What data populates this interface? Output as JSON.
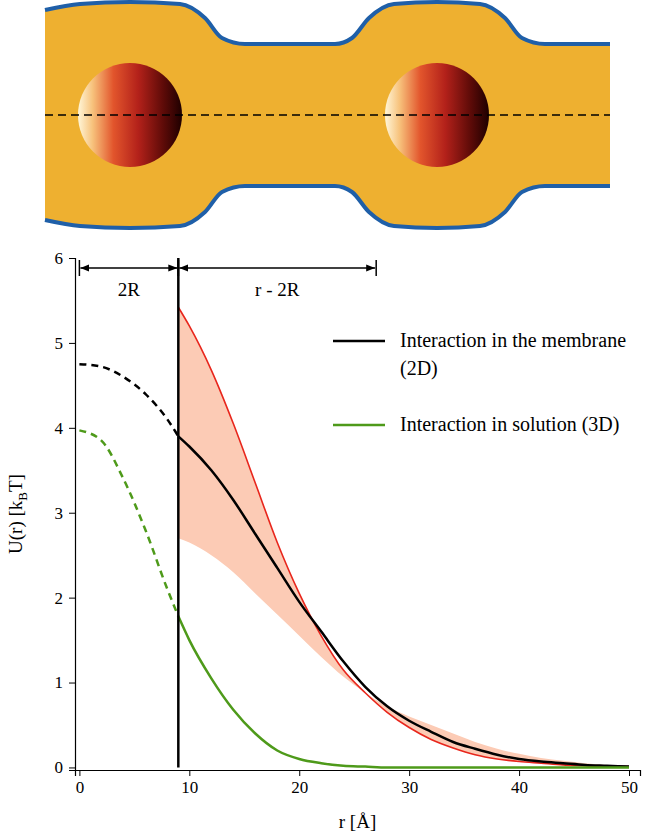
{
  "chart_data": {
    "type": "line",
    "x_label": "r [Å]",
    "y_label": [
      {
        "text": "U(r) [k"
      },
      {
        "text": "B",
        "subscript": true
      },
      {
        "text": "T]"
      }
    ],
    "x": [
      0,
      2,
      4,
      6,
      8,
      9,
      10,
      12,
      14,
      16,
      18,
      20,
      22,
      24,
      26,
      28,
      30,
      32,
      34,
      36,
      38,
      40,
      42,
      44,
      46,
      48,
      50
    ],
    "xlim": [
      -0.4,
      51
    ],
    "xticks": [
      0,
      10,
      20,
      30,
      40,
      50
    ],
    "ylim": [
      -0.03,
      6
    ],
    "yticks": [
      0,
      1,
      2,
      3,
      4,
      5,
      6
    ],
    "legend": "right",
    "vline": {
      "x": 9
    },
    "spans": [
      {
        "label": "2R",
        "from": 0,
        "to": 9
      },
      {
        "label": "r - 2R",
        "from": 9,
        "to": 27
      }
    ],
    "series": [
      {
        "name": "Interaction in the membrane (2D)",
        "type": "line",
        "color": "#000000",
        "values": [
          4.75,
          4.72,
          4.6,
          4.4,
          4.1,
          3.9,
          3.78,
          3.5,
          3.15,
          2.75,
          2.35,
          1.95,
          1.6,
          1.25,
          0.95,
          0.72,
          0.55,
          0.42,
          0.3,
          0.22,
          0.15,
          0.1,
          0.07,
          0.05,
          0.03,
          0.02,
          0.01
        ]
      },
      {
        "name": "Interaction in solution (3D)",
        "type": "line",
        "color": "#4e9a1a",
        "values": [
          3.97,
          3.85,
          3.4,
          2.8,
          2.1,
          1.78,
          1.5,
          1.05,
          0.68,
          0.4,
          0.2,
          0.1,
          0.05,
          0.02,
          0.01,
          0,
          0,
          0,
          0,
          0,
          0,
          0,
          0,
          0,
          0,
          0,
          0
        ]
      },
      {
        "type": "line",
        "color": "#e8261c",
        "values": [
          null,
          null,
          null,
          null,
          null,
          5.42,
          5.2,
          4.68,
          4.05,
          3.35,
          2.65,
          2.05,
          1.55,
          1.15,
          0.88,
          0.65,
          0.47,
          0.33,
          0.23,
          0.15,
          0.1,
          0.07,
          0.05,
          0.03,
          0.02,
          0.01,
          0.01
        ]
      },
      {
        "type": "area",
        "color": "#fccbb5",
        "lower": [
          null,
          null,
          null,
          null,
          null,
          2.7,
          2.65,
          2.5,
          2.3,
          2.05,
          1.8,
          1.55,
          1.3,
          1.07,
          0.88,
          0.72,
          0.6,
          0.5,
          0.4,
          0.3,
          0.22,
          0.16,
          0.11,
          0.08,
          0.05,
          0.03,
          0.02
        ],
        "upper": [
          null,
          null,
          null,
          null,
          null,
          5.42,
          5.2,
          4.68,
          4.05,
          3.35,
          2.65,
          2.05,
          1.55,
          1.15,
          0.88,
          0.65,
          0.47,
          0.33,
          0.23,
          0.15,
          0.1,
          0.07,
          0.05,
          0.03,
          0.02,
          0.01,
          0.01
        ]
      }
    ]
  }
}
